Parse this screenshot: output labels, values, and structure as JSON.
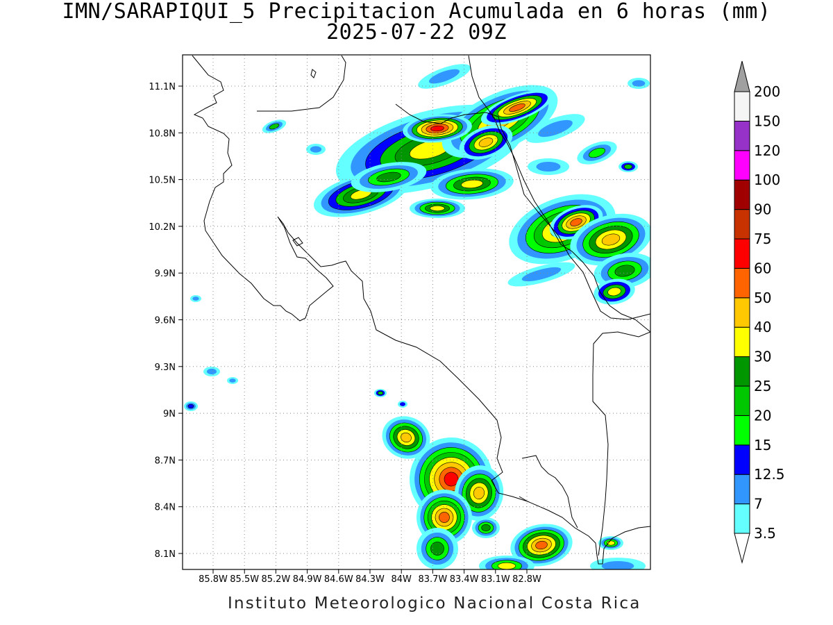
{
  "title": {
    "line1": "IMN/SARAPIQUI_5 Precipitacion Acumulada en 6 horas (mm)",
    "line2": "2025-07-22 09Z"
  },
  "footer": "Instituto Meteorologico Nacional Costa Rica",
  "map": {
    "lon_labels": [
      "85.8W",
      "85.5W",
      "85.2W",
      "84.9W",
      "84.6W",
      "84.3W",
      "84W",
      "83.7W",
      "83.4W",
      "83.1W",
      "82.8W"
    ],
    "lat_labels": [
      "11.1N",
      "10.8N",
      "10.5N",
      "10.2N",
      "9.9N",
      "9.6N",
      "9.3N",
      "9N",
      "8.7N",
      "8.4N",
      "8.1N"
    ],
    "grid": true
  },
  "colorbar": {
    "labels": [
      "3.5",
      "7",
      "12.5",
      "15",
      "20",
      "25",
      "30",
      "40",
      "50",
      "60",
      "75",
      "90",
      "100",
      "120",
      "150",
      "200"
    ],
    "colors": [
      "#64ffff",
      "#3296ff",
      "#0000ff",
      "#00ff00",
      "#00c800",
      "#009600",
      "#ffff00",
      "#ffc800",
      "#ff6400",
      "#ff0000",
      "#c83200",
      "#a00000",
      "#ff00ff",
      "#9632c8",
      "#f5f5f5"
    ],
    "over_color": "#a0a0a0",
    "under_color": "#ffffff"
  }
}
